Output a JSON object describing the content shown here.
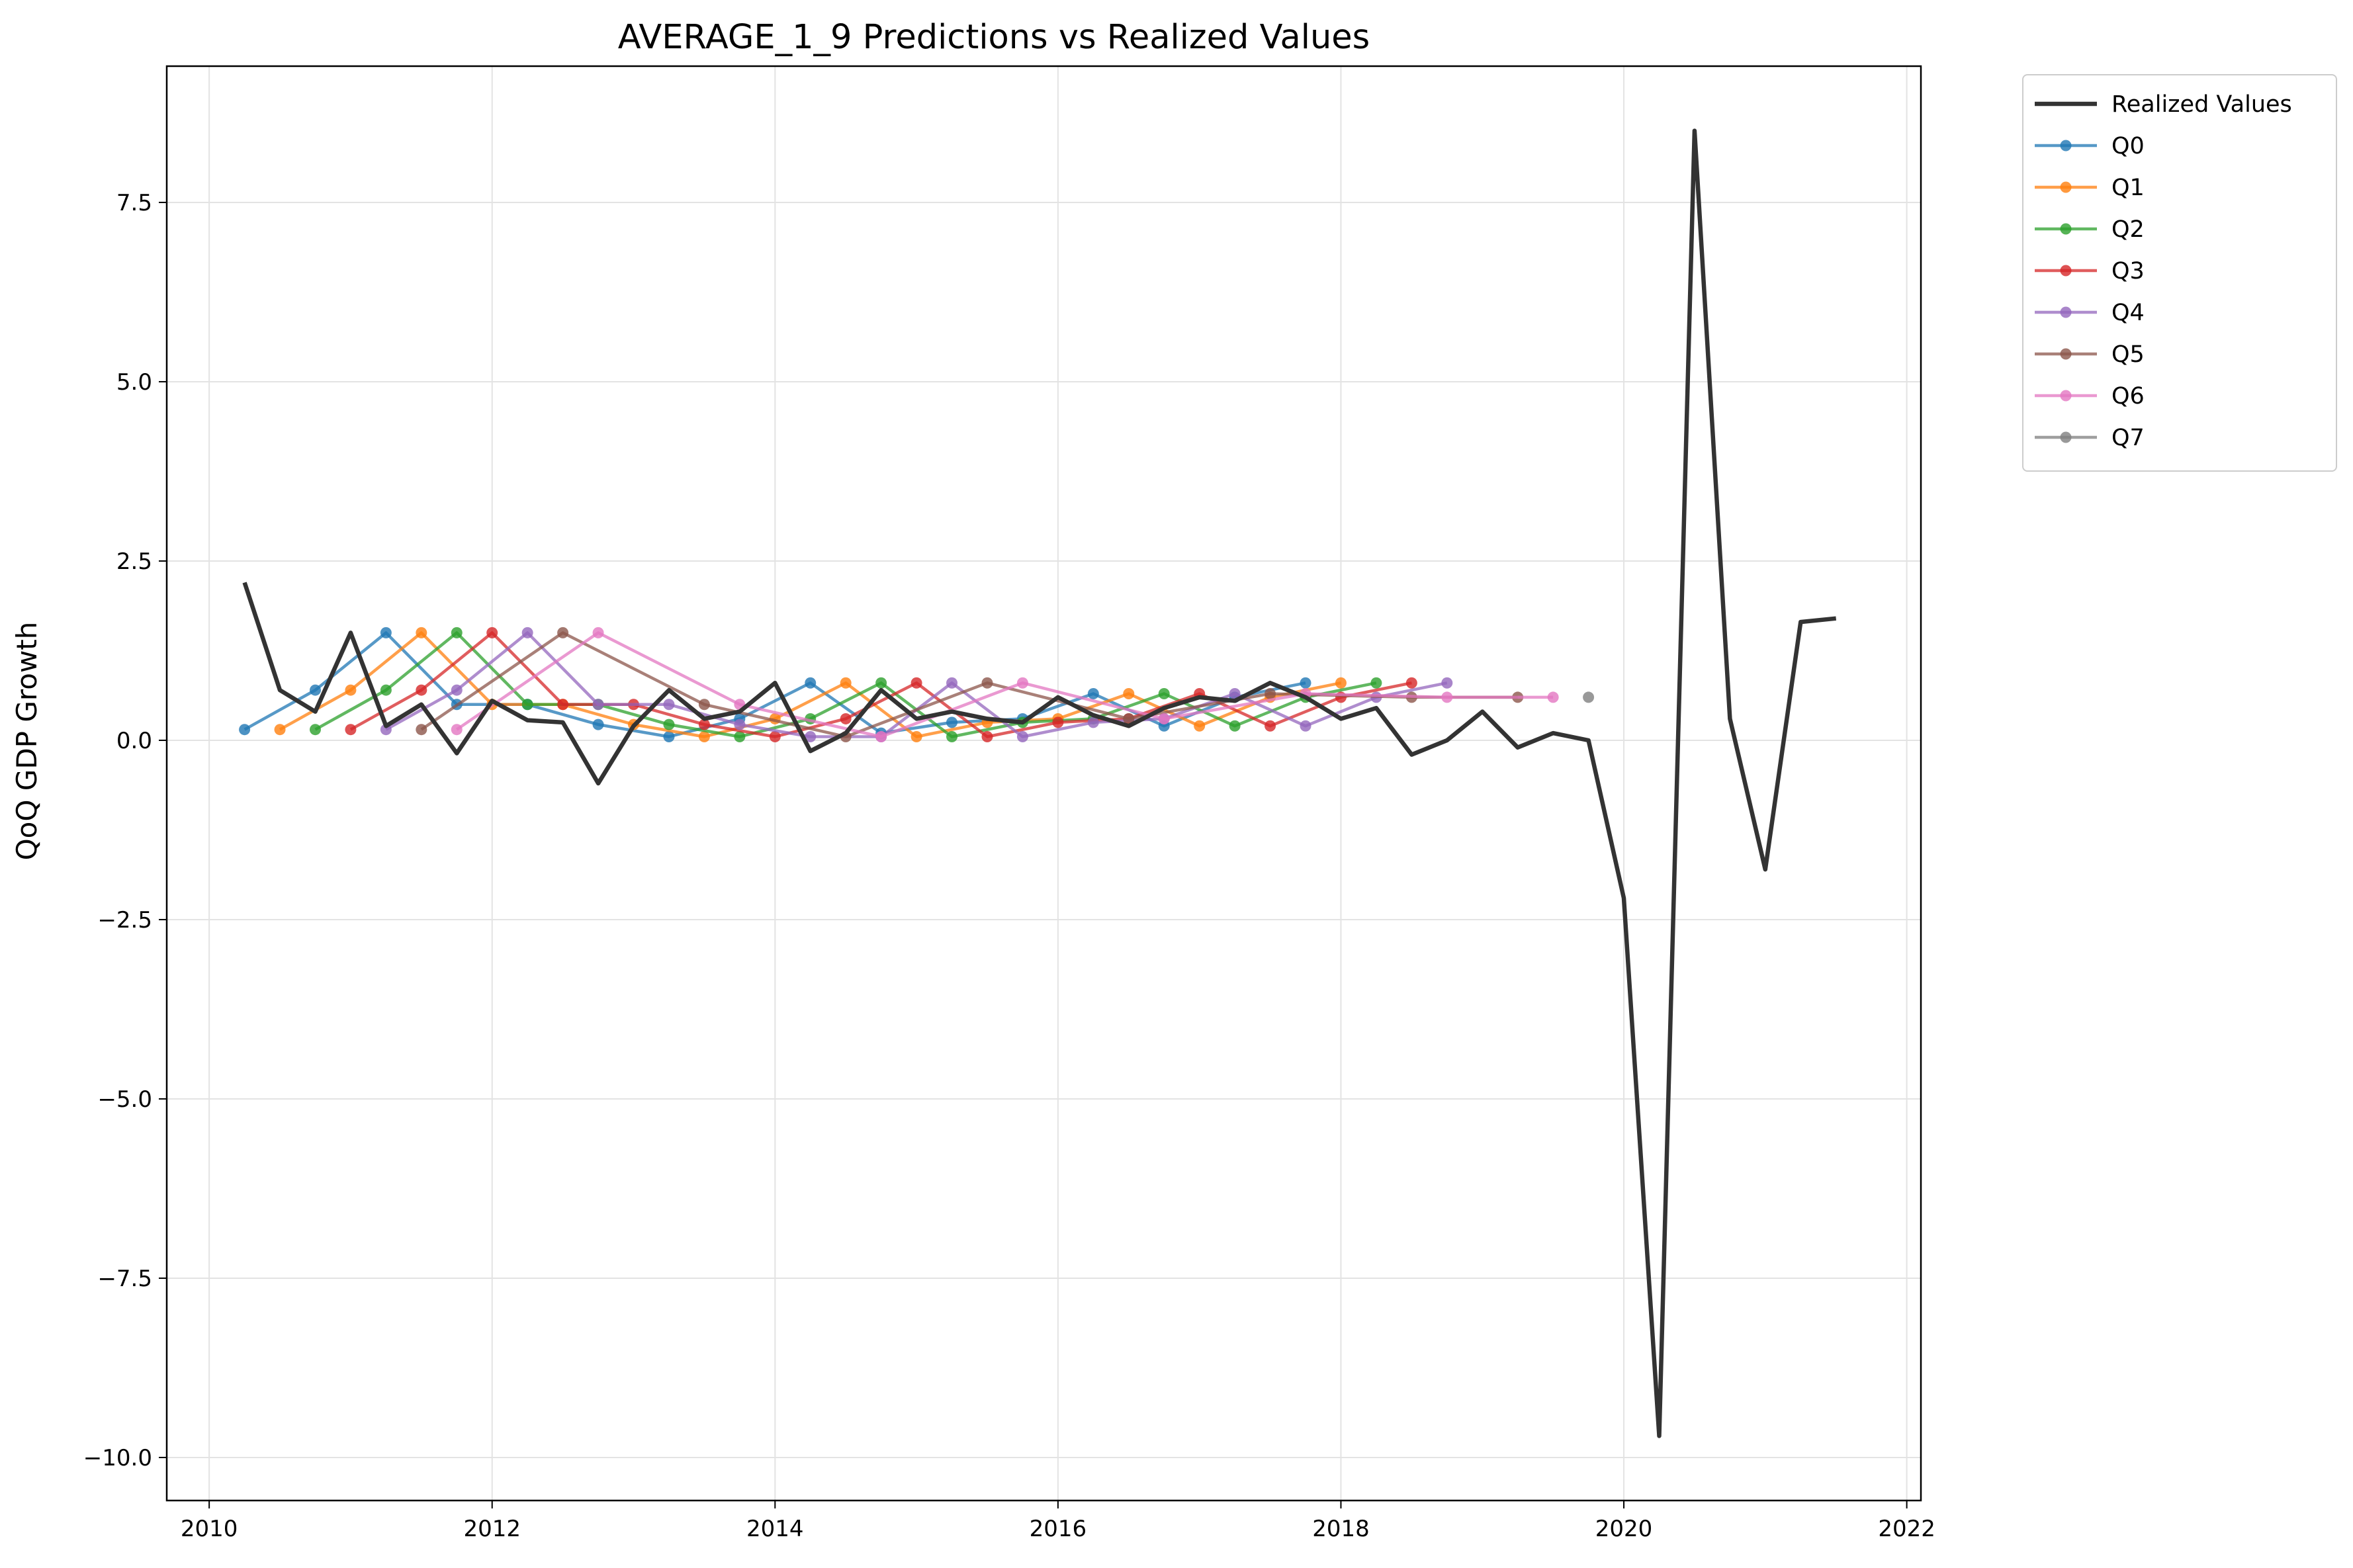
{
  "chart_data": {
    "type": "line",
    "title": "AVERAGE_1_9 Predictions vs Realized Values",
    "xlabel": "",
    "ylabel": "QoQ GDP Growth",
    "xlim": [
      2009.7,
      2022.1
    ],
    "ylim": [
      -10.6,
      9.4
    ],
    "xticks": [
      2010,
      2012,
      2014,
      2016,
      2018,
      2020,
      2022
    ],
    "xtick_labels": [
      "2010",
      "2012",
      "2014",
      "2016",
      "2018",
      "2020",
      "2022"
    ],
    "yticks": [
      7.5,
      5.0,
      2.5,
      0.0,
      -2.5,
      -5.0,
      -7.5,
      -10.0
    ],
    "ytick_labels": [
      "7.5",
      "5.0",
      "2.5",
      "0.0",
      "−2.5",
      "−5.0",
      "−7.5",
      "−10.0"
    ],
    "grid": true,
    "legend_position": "outside-top-right",
    "series": [
      {
        "name": "Realized Values",
        "color": "#333333",
        "marker": false,
        "x": [
          2010.25,
          2010.5,
          2010.75,
          2011.0,
          2011.25,
          2011.5,
          2011.75,
          2012.0,
          2012.25,
          2012.5,
          2012.75,
          2013.0,
          2013.25,
          2013.5,
          2013.75,
          2014.0,
          2014.25,
          2014.5,
          2014.75,
          2015.0,
          2015.25,
          2015.5,
          2015.75,
          2016.0,
          2016.25,
          2016.5,
          2016.75,
          2017.0,
          2017.25,
          2017.5,
          2017.75,
          2018.0,
          2018.25,
          2018.5,
          2018.75,
          2019.0,
          2019.25,
          2019.5,
          2019.75,
          2020.0,
          2020.25,
          2020.5,
          2020.75,
          2021.0,
          2021.25,
          2021.5
        ],
        "values": [
          2.2,
          0.7,
          0.4,
          1.5,
          0.2,
          0.5,
          -0.18,
          0.55,
          0.28,
          0.25,
          -0.6,
          0.2,
          0.7,
          0.3,
          0.4,
          0.8,
          -0.15,
          0.1,
          0.7,
          0.3,
          0.4,
          0.3,
          0.25,
          0.6,
          0.35,
          0.2,
          0.45,
          0.6,
          0.55,
          0.8,
          0.6,
          0.3,
          0.45,
          -0.2,
          0.0,
          0.4,
          -0.1,
          0.1,
          0.0,
          -2.2,
          -9.7,
          8.5,
          0.3,
          -1.8,
          1.65,
          1.7
        ]
      },
      {
        "name": "Q0",
        "color": "#1f77b4",
        "marker": true,
        "x": [
          2010.25,
          2010.75,
          2011.25,
          2011.75,
          2012.25,
          2012.75,
          2013.25,
          2013.75,
          2014.25,
          2014.75,
          2015.25,
          2015.75,
          2016.25,
          2016.75,
          2017.25,
          2017.75
        ],
        "values": [
          0.15,
          0.7,
          1.5,
          0.5,
          0.5,
          0.22,
          0.05,
          0.3,
          0.8,
          0.1,
          0.25,
          0.3,
          0.65,
          0.2,
          0.6,
          0.8
        ]
      },
      {
        "name": "Q1",
        "color": "#ff7f0e",
        "marker": true,
        "x": [
          2010.5,
          2011.0,
          2011.5,
          2012.0,
          2012.5,
          2013.0,
          2013.5,
          2014.0,
          2014.5,
          2015.0,
          2015.5,
          2016.0,
          2016.5,
          2017.0,
          2017.5,
          2018.0
        ],
        "values": [
          0.15,
          0.7,
          1.5,
          0.5,
          0.5,
          0.22,
          0.05,
          0.3,
          0.8,
          0.05,
          0.25,
          0.3,
          0.65,
          0.2,
          0.6,
          0.8
        ]
      },
      {
        "name": "Q2",
        "color": "#2ca02c",
        "marker": true,
        "x": [
          2010.75,
          2011.25,
          2011.75,
          2012.25,
          2012.75,
          2013.25,
          2013.75,
          2014.25,
          2014.75,
          2015.25,
          2015.75,
          2016.25,
          2016.75,
          2017.25,
          2017.75,
          2018.25
        ],
        "values": [
          0.15,
          0.7,
          1.5,
          0.5,
          0.5,
          0.22,
          0.05,
          0.3,
          0.8,
          0.05,
          0.25,
          0.3,
          0.65,
          0.2,
          0.6,
          0.8
        ]
      },
      {
        "name": "Q3",
        "color": "#d62728",
        "marker": true,
        "x": [
          2011.0,
          2011.5,
          2012.0,
          2012.5,
          2013.0,
          2013.5,
          2014.0,
          2014.5,
          2015.0,
          2015.5,
          2016.0,
          2016.5,
          2017.0,
          2017.5,
          2018.0,
          2018.5
        ],
        "values": [
          0.15,
          0.7,
          1.5,
          0.5,
          0.5,
          0.22,
          0.05,
          0.3,
          0.8,
          0.05,
          0.25,
          0.3,
          0.65,
          0.2,
          0.6,
          0.8
        ]
      },
      {
        "name": "Q4",
        "color": "#9467bd",
        "marker": true,
        "x": [
          2011.25,
          2011.75,
          2012.25,
          2012.75,
          2013.25,
          2013.75,
          2014.25,
          2014.75,
          2015.25,
          2015.75,
          2016.25,
          2016.75,
          2017.25,
          2017.75,
          2018.25,
          2018.75
        ],
        "values": [
          0.15,
          0.7,
          1.5,
          0.5,
          0.5,
          0.22,
          0.05,
          0.05,
          0.8,
          0.05,
          0.25,
          0.3,
          0.65,
          0.2,
          0.6,
          0.8
        ]
      },
      {
        "name": "Q5",
        "color": "#8c564b",
        "marker": true,
        "x": [
          2011.5,
          2012.5,
          2013.5,
          2014.5,
          2015.5,
          2016.5,
          2017.5,
          2018.5,
          2019.25
        ],
        "values": [
          0.15,
          1.5,
          0.5,
          0.05,
          0.8,
          0.3,
          0.65,
          0.6,
          0.6
        ]
      },
      {
        "name": "Q6",
        "color": "#e377c2",
        "marker": true,
        "x": [
          2011.75,
          2012.75,
          2013.75,
          2014.75,
          2015.75,
          2016.75,
          2017.75,
          2018.75,
          2019.5
        ],
        "values": [
          0.15,
          1.5,
          0.5,
          0.05,
          0.8,
          0.3,
          0.65,
          0.6,
          0.6
        ]
      },
      {
        "name": "Q7",
        "color": "#7f7f7f",
        "marker": true,
        "x": [
          2019.75
        ],
        "values": [
          0.6
        ]
      }
    ]
  }
}
